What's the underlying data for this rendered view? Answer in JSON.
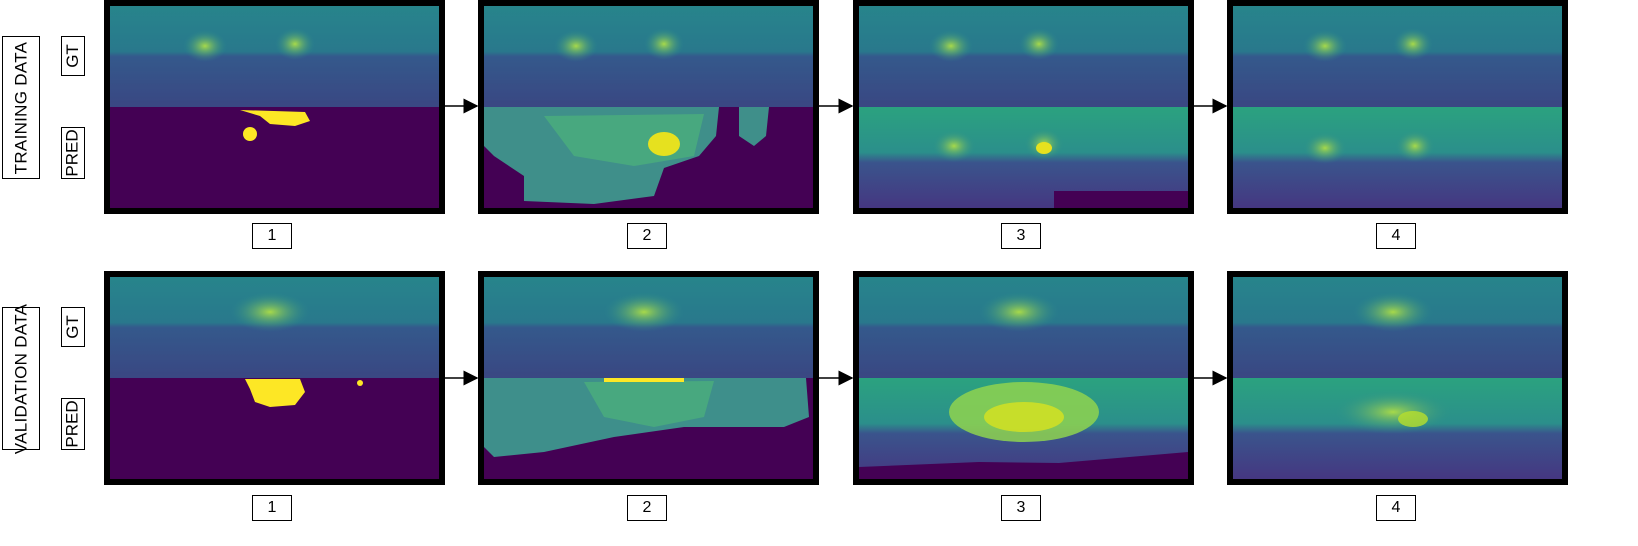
{
  "rows": [
    {
      "label": "TRAINING DATA",
      "gt_label": "GT",
      "pred_label": "PRED",
      "steps": [
        "1",
        "2",
        "3",
        "4"
      ]
    },
    {
      "label": "VALIDATION DATA",
      "gt_label": "GT",
      "pred_label": "PRED",
      "steps": [
        "1",
        "2",
        "3",
        "4"
      ]
    }
  ],
  "colors": {
    "viridis_dark": "#440154",
    "viridis_blue": "#3b528b",
    "viridis_teal": "#21918c",
    "viridis_green": "#5ec962",
    "viridis_yellow": "#fde725"
  }
}
